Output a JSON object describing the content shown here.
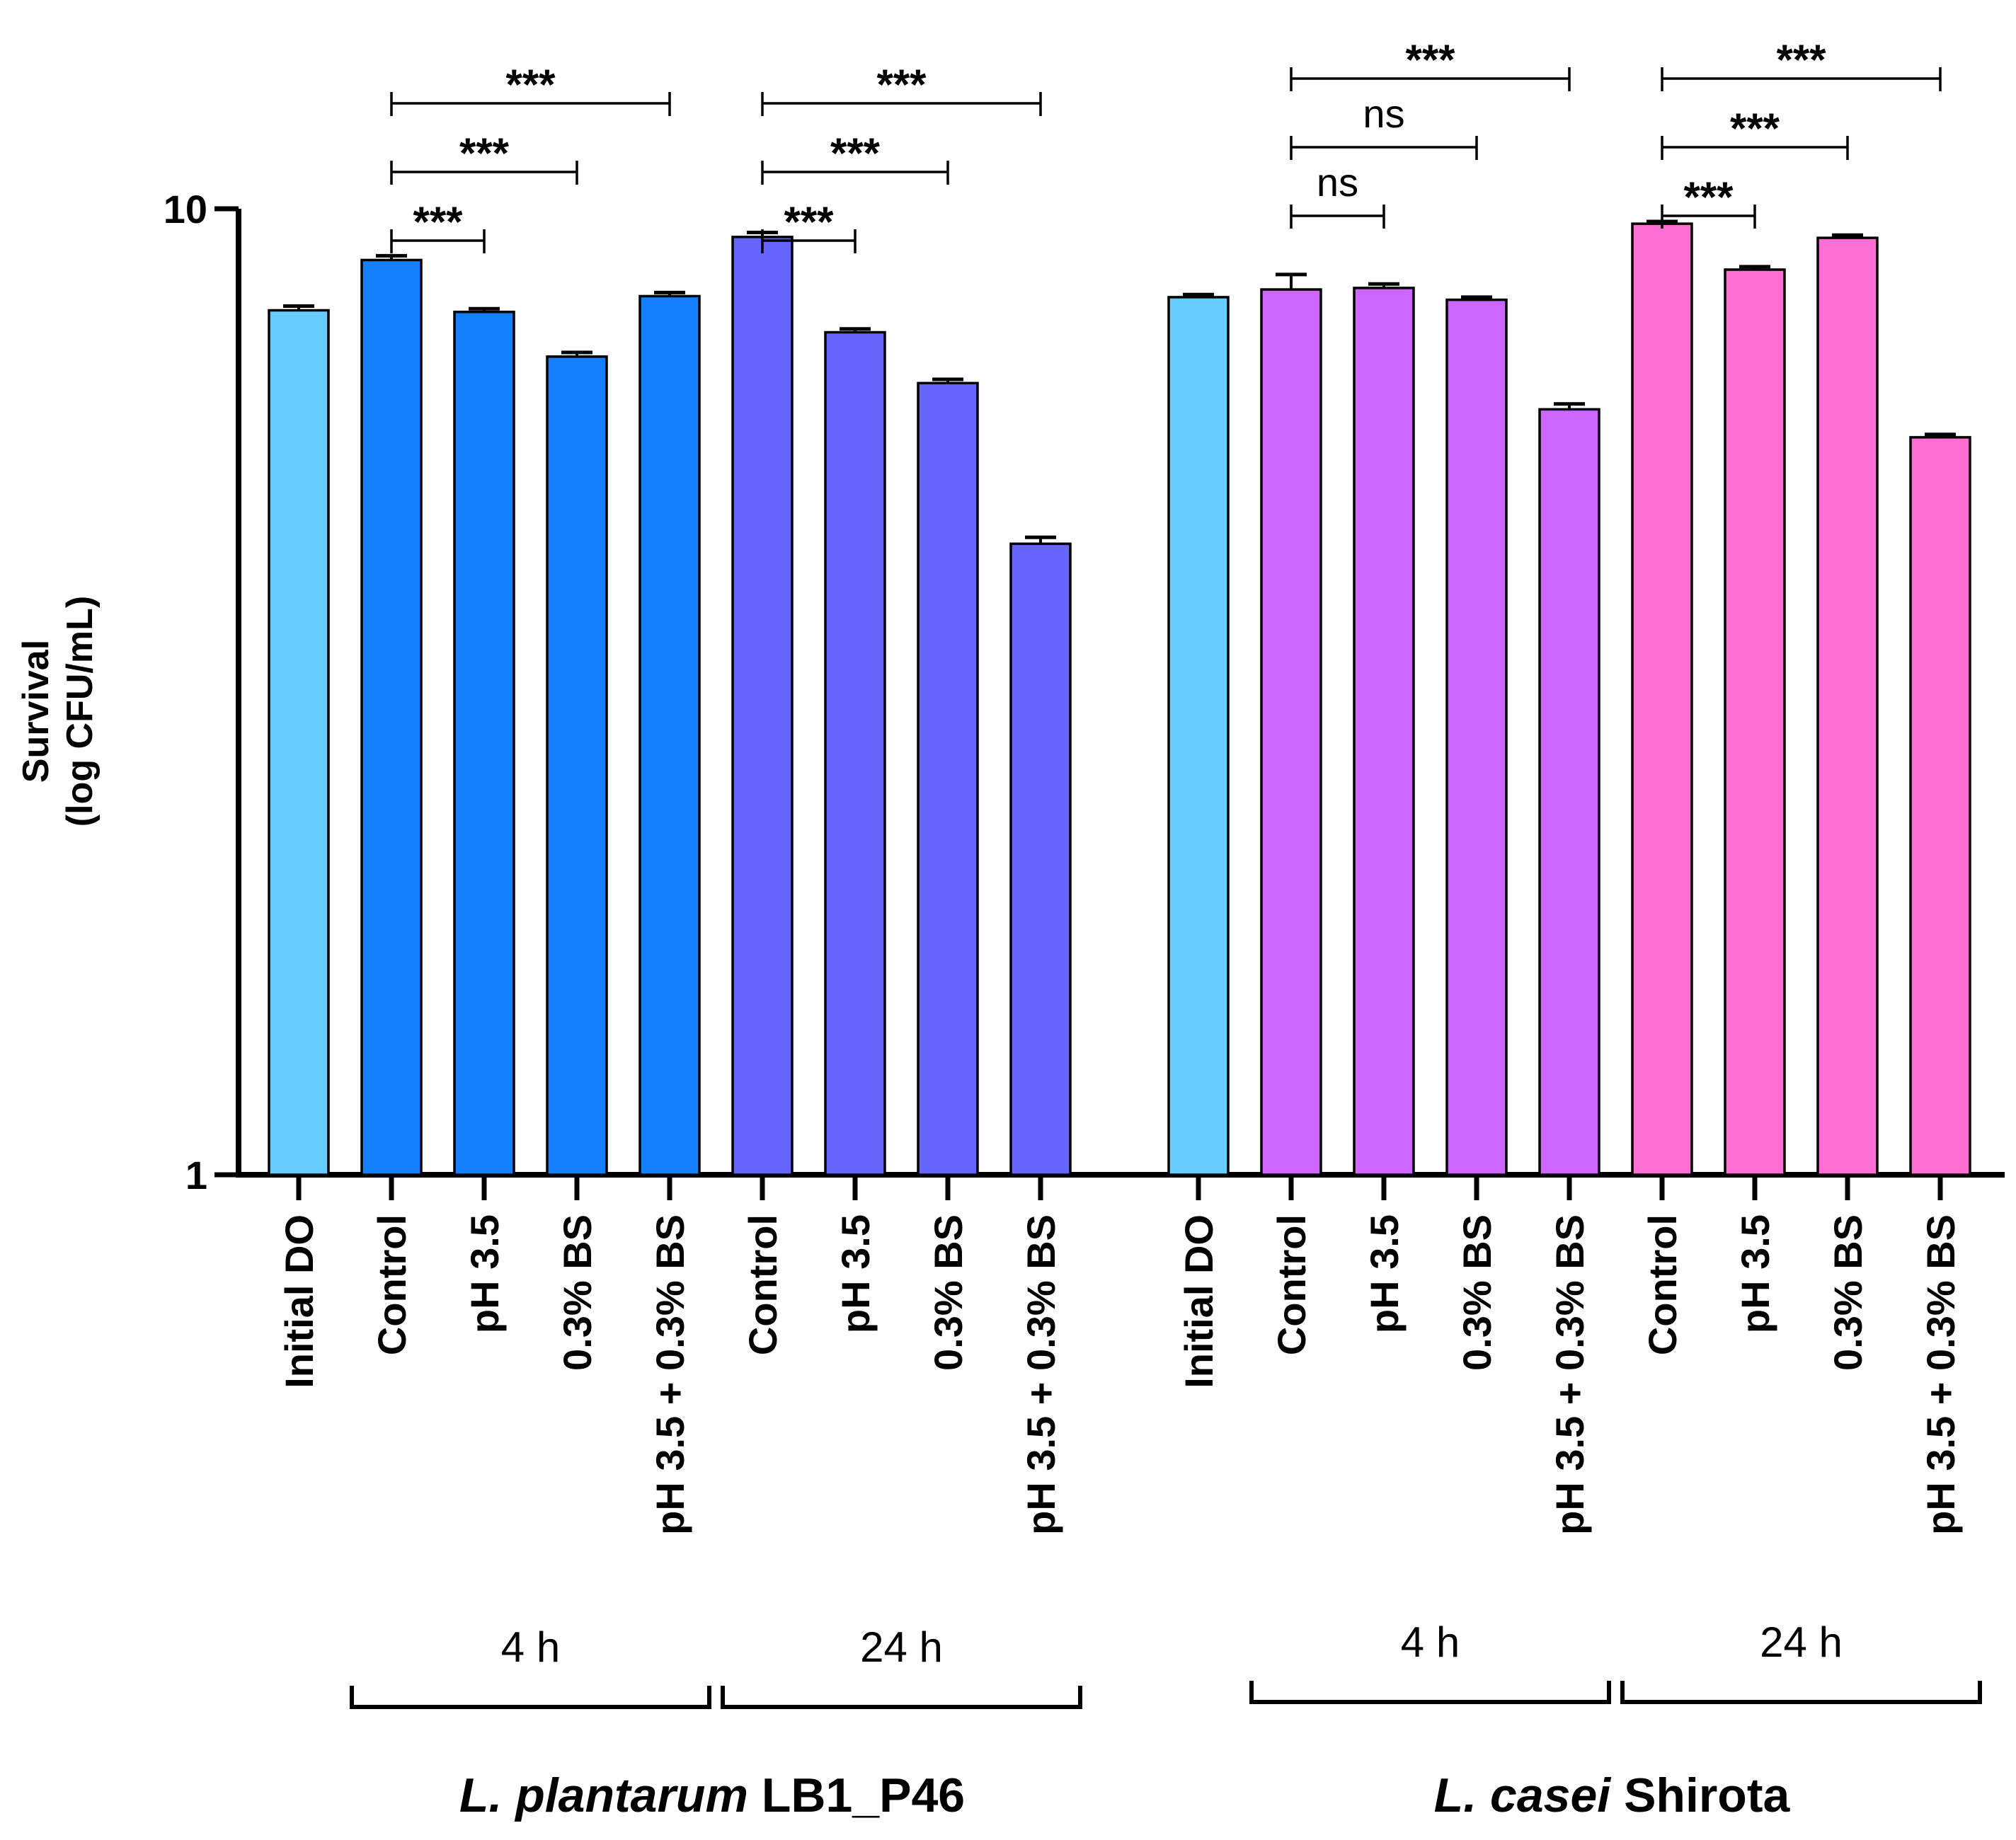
{
  "chart_data": {
    "type": "bar",
    "ylabel": [
      "Survival",
      "(log CFU/mL)"
    ],
    "yscale": "log",
    "ylim": [
      1,
      10
    ],
    "yticks": [
      "1",
      "10"
    ],
    "error_bars": true,
    "groups": [
      {
        "organism_italic": "L. plantarum",
        "organism_strain": "LB1_P46",
        "bars": [
          {
            "label": "Initial DO",
            "value": 7.85,
            "err": 0.08,
            "color": "#66CCFF"
          },
          {
            "label": "Control",
            "value": 8.85,
            "err": 0.09,
            "color": "#1580FF"
          },
          {
            "label": "pH 3.5",
            "value": 7.82,
            "err": 0.06,
            "color": "#1580FF"
          },
          {
            "label": "0.3% BS",
            "value": 7.03,
            "err": 0.07,
            "color": "#1580FF"
          },
          {
            "label": "pH 3.5 + 0.3% BS",
            "value": 8.12,
            "err": 0.07,
            "color": "#1580FF"
          },
          {
            "label": "Control",
            "value": 9.35,
            "err": 0.1,
            "color": "#6666FF"
          },
          {
            "label": "pH 3.5",
            "value": 7.45,
            "err": 0.06,
            "color": "#6666FF"
          },
          {
            "label": "0.3% BS",
            "value": 6.6,
            "err": 0.06,
            "color": "#6666FF"
          },
          {
            "label": "pH 3.5 + 0.3% BS",
            "value": 4.5,
            "err": 0.07,
            "color": "#6666FF"
          }
        ],
        "time_groups": [
          {
            "label": "4 h",
            "bars": [
              1,
              4
            ]
          },
          {
            "label": "24 h",
            "bars": [
              5,
              8
            ]
          }
        ],
        "significance": [
          {
            "from": 1,
            "to": 2,
            "text": "***"
          },
          {
            "from": 1,
            "to": 3,
            "text": "***"
          },
          {
            "from": 1,
            "to": 4,
            "text": "***"
          },
          {
            "from": 5,
            "to": 6,
            "text": "***"
          },
          {
            "from": 5,
            "to": 7,
            "text": "***"
          },
          {
            "from": 5,
            "to": 8,
            "text": "***"
          }
        ]
      },
      {
        "organism_italic": "L. casei",
        "organism_strain": "Shirota",
        "bars": [
          {
            "label": "Initial DO",
            "value": 8.1,
            "err": 0.05,
            "color": "#66CCFF"
          },
          {
            "label": "Control",
            "value": 8.25,
            "err": 0.3,
            "color": "#CC66FF"
          },
          {
            "label": "pH 3.5",
            "value": 8.28,
            "err": 0.08,
            "color": "#CC66FF"
          },
          {
            "label": "0.3% BS",
            "value": 8.05,
            "err": 0.05,
            "color": "#CC66FF"
          },
          {
            "label": "pH 3.5 + 0.3% BS",
            "value": 6.2,
            "err": 0.08,
            "color": "#CC66FF"
          },
          {
            "label": "Control",
            "value": 9.65,
            "err": 0.05,
            "color": "#FF6FD3"
          },
          {
            "label": "pH 3.5",
            "value": 8.65,
            "err": 0.06,
            "color": "#FF6FD3"
          },
          {
            "label": "0.3% BS",
            "value": 9.33,
            "err": 0.06,
            "color": "#FF6FD3"
          },
          {
            "label": "pH 3.5 + 0.3% BS",
            "value": 5.8,
            "err": 0.04,
            "color": "#FF6FD3"
          }
        ],
        "time_groups": [
          {
            "label": "4 h",
            "bars": [
              1,
              4
            ]
          },
          {
            "label": "24 h",
            "bars": [
              5,
              8
            ]
          }
        ],
        "significance": [
          {
            "from": 1,
            "to": 2,
            "text": "ns"
          },
          {
            "from": 1,
            "to": 3,
            "text": "ns"
          },
          {
            "from": 1,
            "to": 4,
            "text": "***"
          },
          {
            "from": 5,
            "to": 6,
            "text": "***"
          },
          {
            "from": 5,
            "to": 7,
            "text": "***"
          },
          {
            "from": 5,
            "to": 8,
            "text": "***"
          }
        ]
      }
    ]
  }
}
